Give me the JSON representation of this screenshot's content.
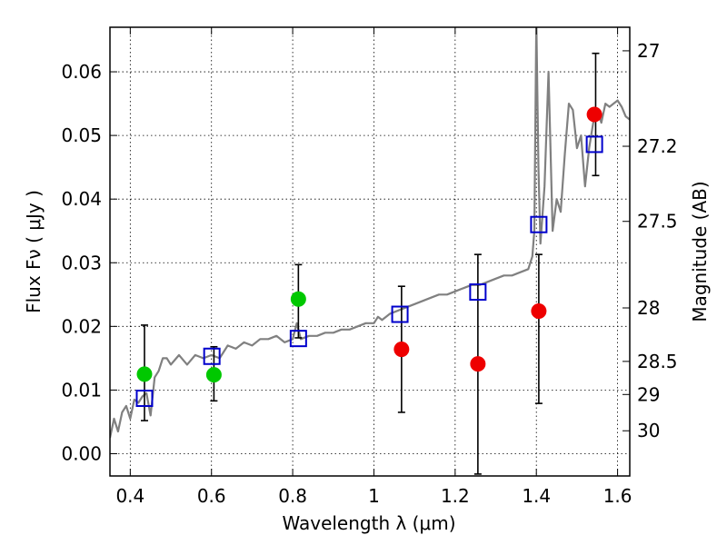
{
  "chart_data": {
    "type": "scatter",
    "xlabel": "Wavelength  λ (μm)",
    "ylabel": "Flux  Fν  ( μJy )",
    "ylabel_right": "Magnitude (AB)",
    "xlim": [
      0.35,
      1.63
    ],
    "ylim": [
      -0.0035,
      0.067
    ],
    "grid": true,
    "x_ticks": [
      {
        "v": 0.4,
        "label": "0.4"
      },
      {
        "v": 0.6,
        "label": "0.6"
      },
      {
        "v": 0.8,
        "label": "0.8"
      },
      {
        "v": 1.0,
        "label": "1"
      },
      {
        "v": 1.2,
        "label": "1.2"
      },
      {
        "v": 1.4,
        "label": "1.4"
      },
      {
        "v": 1.6,
        "label": "1.6"
      }
    ],
    "y_ticks": [
      {
        "v": 0.0,
        "label": "0.00"
      },
      {
        "v": 0.01,
        "label": "0.01"
      },
      {
        "v": 0.02,
        "label": "0.02"
      },
      {
        "v": 0.03,
        "label": "0.03"
      },
      {
        "v": 0.04,
        "label": "0.04"
      },
      {
        "v": 0.05,
        "label": "0.05"
      },
      {
        "v": 0.06,
        "label": "0.06"
      }
    ],
    "mag_ticks": [
      {
        "v": 0.0633,
        "label": "27"
      },
      {
        "v": 0.0483,
        "label": "27.2"
      },
      {
        "v": 0.0365,
        "label": "27.5"
      },
      {
        "v": 0.0229,
        "label": "28"
      },
      {
        "v": 0.0145,
        "label": "28.5"
      },
      {
        "v": 0.0093,
        "label": "29"
      },
      {
        "v": 0.0036,
        "label": "30"
      }
    ],
    "series": [
      {
        "name": "model-spectrum",
        "kind": "line",
        "color": "#808080",
        "points": [
          [
            0.35,
            0.0025
          ],
          [
            0.36,
            0.0055
          ],
          [
            0.37,
            0.0035
          ],
          [
            0.38,
            0.0065
          ],
          [
            0.39,
            0.0075
          ],
          [
            0.4,
            0.0055
          ],
          [
            0.41,
            0.0085
          ],
          [
            0.42,
            0.008
          ],
          [
            0.43,
            0.009
          ],
          [
            0.44,
            0.0095
          ],
          [
            0.45,
            0.006
          ],
          [
            0.46,
            0.012
          ],
          [
            0.47,
            0.013
          ],
          [
            0.48,
            0.015
          ],
          [
            0.49,
            0.015
          ],
          [
            0.5,
            0.014
          ],
          [
            0.52,
            0.0155
          ],
          [
            0.54,
            0.014
          ],
          [
            0.56,
            0.0155
          ],
          [
            0.58,
            0.015
          ],
          [
            0.6,
            0.0155
          ],
          [
            0.62,
            0.015
          ],
          [
            0.64,
            0.017
          ],
          [
            0.66,
            0.0165
          ],
          [
            0.68,
            0.0175
          ],
          [
            0.7,
            0.017
          ],
          [
            0.72,
            0.018
          ],
          [
            0.74,
            0.018
          ],
          [
            0.76,
            0.0185
          ],
          [
            0.78,
            0.0175
          ],
          [
            0.8,
            0.018
          ],
          [
            0.81,
            0.0205
          ],
          [
            0.82,
            0.018
          ],
          [
            0.84,
            0.0185
          ],
          [
            0.86,
            0.0185
          ],
          [
            0.88,
            0.019
          ],
          [
            0.9,
            0.019
          ],
          [
            0.92,
            0.0195
          ],
          [
            0.94,
            0.0195
          ],
          [
            0.96,
            0.02
          ],
          [
            0.98,
            0.0205
          ],
          [
            1.0,
            0.0205
          ],
          [
            1.01,
            0.0215
          ],
          [
            1.02,
            0.021
          ],
          [
            1.04,
            0.022
          ],
          [
            1.06,
            0.0225
          ],
          [
            1.08,
            0.023
          ],
          [
            1.1,
            0.0235
          ],
          [
            1.12,
            0.024
          ],
          [
            1.14,
            0.0245
          ],
          [
            1.16,
            0.025
          ],
          [
            1.18,
            0.025
          ],
          [
            1.2,
            0.0255
          ],
          [
            1.22,
            0.026
          ],
          [
            1.24,
            0.0265
          ],
          [
            1.26,
            0.0265
          ],
          [
            1.28,
            0.027
          ],
          [
            1.3,
            0.0275
          ],
          [
            1.32,
            0.028
          ],
          [
            1.34,
            0.028
          ],
          [
            1.36,
            0.0285
          ],
          [
            1.38,
            0.029
          ],
          [
            1.39,
            0.031
          ],
          [
            1.395,
            0.035
          ],
          [
            1.4,
            0.068
          ],
          [
            1.405,
            0.045
          ],
          [
            1.41,
            0.033
          ],
          [
            1.42,
            0.042
          ],
          [
            1.43,
            0.06
          ],
          [
            1.44,
            0.035
          ],
          [
            1.45,
            0.04
          ],
          [
            1.46,
            0.038
          ],
          [
            1.47,
            0.047
          ],
          [
            1.48,
            0.055
          ],
          [
            1.49,
            0.054
          ],
          [
            1.5,
            0.048
          ],
          [
            1.51,
            0.05
          ],
          [
            1.52,
            0.042
          ],
          [
            1.53,
            0.048
          ],
          [
            1.54,
            0.052
          ],
          [
            1.55,
            0.054
          ],
          [
            1.56,
            0.052
          ],
          [
            1.57,
            0.055
          ],
          [
            1.58,
            0.0545
          ],
          [
            1.59,
            0.055
          ],
          [
            1.6,
            0.0555
          ],
          [
            1.61,
            0.0545
          ],
          [
            1.62,
            0.053
          ],
          [
            1.63,
            0.0525
          ]
        ]
      },
      {
        "name": "model-bandpass",
        "kind": "open-square",
        "color": "#0000cc",
        "points": [
          [
            0.435,
            0.0087
          ],
          [
            0.601,
            0.0153
          ],
          [
            0.814,
            0.0181
          ],
          [
            1.064,
            0.0219
          ],
          [
            1.256,
            0.0254
          ],
          [
            1.406,
            0.036
          ],
          [
            1.543,
            0.0486
          ]
        ]
      },
      {
        "name": "observed-green",
        "kind": "filled-circle",
        "color": "#00c800",
        "points": [
          [
            0.435,
            0.0125
          ],
          [
            0.606,
            0.0124
          ],
          [
            0.814,
            0.0243
          ]
        ]
      },
      {
        "name": "observed-red",
        "kind": "filled-circle",
        "color": "#ee0000",
        "points": [
          [
            1.068,
            0.0164
          ],
          [
            1.256,
            0.0141
          ],
          [
            1.406,
            0.0224
          ],
          [
            1.543,
            0.0533
          ]
        ]
      }
    ],
    "error_bars": [
      {
        "x": 0.435,
        "lo": 0.0052,
        "hi": 0.0202
      },
      {
        "x": 0.606,
        "lo": 0.0083,
        "hi": 0.0168
      },
      {
        "x": 0.814,
        "lo": 0.0182,
        "hi": 0.0297
      },
      {
        "x": 1.068,
        "lo": 0.0065,
        "hi": 0.0263
      },
      {
        "x": 1.256,
        "lo": -0.0032,
        "hi": 0.0313
      },
      {
        "x": 1.406,
        "lo": 0.0079,
        "hi": 0.0313
      },
      {
        "x": 1.546,
        "lo": 0.0437,
        "hi": 0.0629
      }
    ]
  }
}
